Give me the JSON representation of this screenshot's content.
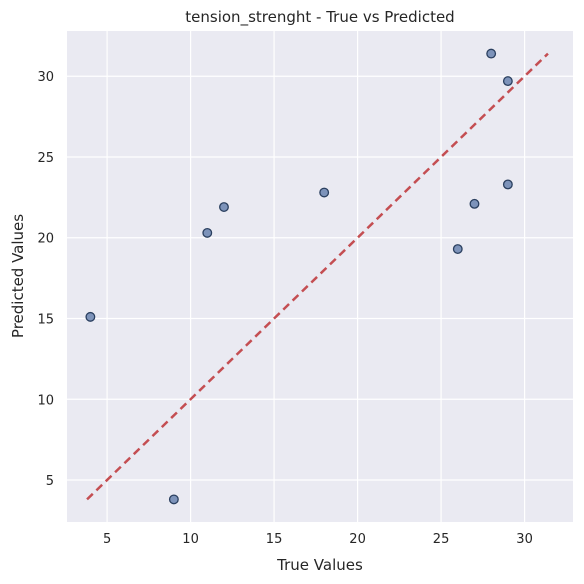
{
  "chart_data": {
    "type": "scatter",
    "title": "tension_strenght - True vs Predicted",
    "xlabel": "True Values",
    "ylabel": "Predicted Values",
    "xlim": [
      2.6,
      32.9
    ],
    "ylim": [
      2.4,
      32.8
    ],
    "xticks": [
      5,
      10,
      15,
      20,
      25,
      30
    ],
    "yticks": [
      5,
      10,
      15,
      20,
      25,
      30
    ],
    "grid": true,
    "points": [
      {
        "x": 4,
        "y": 15.1
      },
      {
        "x": 9,
        "y": 3.8
      },
      {
        "x": 11,
        "y": 20.3
      },
      {
        "x": 12,
        "y": 21.9
      },
      {
        "x": 18,
        "y": 22.8
      },
      {
        "x": 26,
        "y": 19.3
      },
      {
        "x": 27,
        "y": 22.1
      },
      {
        "x": 28,
        "y": 31.4
      },
      {
        "x": 29,
        "y": 29.7
      },
      {
        "x": 29,
        "y": 23.3
      }
    ],
    "reference_line": {
      "x": [
        3.8,
        31.4
      ],
      "y": [
        3.8,
        31.4
      ]
    },
    "colors": {
      "background": "#eaeaf2",
      "grid": "#ffffff",
      "marker_fill": "#7189b4",
      "marker_edge": "#2a3f5f",
      "reference_line": "#c44e52"
    }
  }
}
